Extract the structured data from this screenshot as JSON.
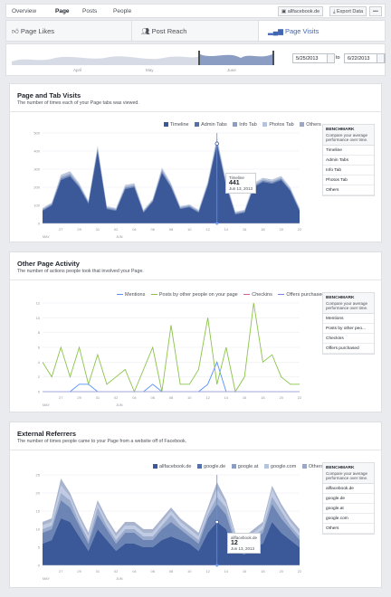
{
  "nav": {
    "items": [
      "Overview",
      "Page",
      "Posts",
      "People"
    ],
    "page_button": "allfacebook.de",
    "export_button": "Export Data",
    "more": "•••"
  },
  "tabs": [
    "Page Likes",
    "Post Reach",
    "Page Visits"
  ],
  "range": {
    "from": "5/25/2013",
    "to_label": "to",
    "to": "6/22/2013",
    "months": [
      "April",
      "May",
      "June"
    ]
  },
  "x_ticks": [
    "27",
    "29",
    "31",
    "02",
    "04",
    "06",
    "08",
    "10",
    "12",
    "14",
    "16",
    "18",
    "20",
    "22"
  ],
  "x_months": {
    "may": "MAY",
    "jun": "JUN"
  },
  "benchmark": {
    "title": "BENCHMARK",
    "desc": "Compare your average performance over time."
  },
  "colors": {
    "timeline": "#3b5998",
    "admin": "#5470a8",
    "info": "#8b9dc3",
    "photos": "#b6c3df",
    "others": "#9aa7c7",
    "mentions": "#5890ff",
    "posts": "#8bc34a",
    "checkins": "#e05c8a",
    "offers": "#7a7de6",
    "ref1": "#3b5998",
    "ref2": "#5470a8",
    "ref3": "#8b9dc3",
    "ref4": "#b6c3df",
    "ref5": "#9aa7c7"
  },
  "panel1": {
    "title": "Page and Tab Visits",
    "subtitle": "The number of times each of your Page tabs was viewed.",
    "benchmark_items": [
      "Timeline",
      "Admin Tabs",
      "Info Tab",
      "Photos Tab",
      "Others"
    ],
    "tooltip": {
      "label": "Timeline",
      "value": "441",
      "date": "Jun 13, 2013"
    }
  },
  "panel2": {
    "title": "Other Page Activity",
    "subtitle": "The number of actions people took that involved your Page.",
    "benchmark_items": [
      "Mentions",
      "Posts by other peo...",
      "Checkins",
      "Offers purchased"
    ]
  },
  "panel3": {
    "title": "External Referrers",
    "subtitle": "The number of times people came to your Page from a website off of Facebook.",
    "benchmark_items": [
      "allfacebook.de",
      "google.de",
      "google.at",
      "google.com",
      "Others"
    ],
    "tooltip": {
      "label": "allfacebook.de",
      "value": "12",
      "date": "Jun 13, 2013"
    }
  },
  "chart_data": [
    {
      "type": "area",
      "title": "Page and Tab Visits",
      "x": [
        "5/25",
        "5/26",
        "5/27",
        "5/28",
        "5/29",
        "5/30",
        "5/31",
        "6/1",
        "6/2",
        "6/3",
        "6/4",
        "6/5",
        "6/6",
        "6/7",
        "6/8",
        "6/9",
        "6/10",
        "6/11",
        "6/12",
        "6/13",
        "6/14",
        "6/15",
        "6/16",
        "6/17",
        "6/18",
        "6/19",
        "6/20",
        "6/21",
        "6/22"
      ],
      "ylim": [
        0,
        500
      ],
      "y_ticks": [
        "0",
        "100",
        "200",
        "300",
        "400",
        "500"
      ],
      "series": [
        {
          "name": "Timeline",
          "values": [
            70,
            100,
            240,
            260,
            200,
            110,
            400,
            80,
            70,
            190,
            200,
            60,
            120,
            280,
            200,
            80,
            90,
            60,
            210,
            441,
            210,
            50,
            60,
            200,
            230,
            220,
            240,
            180,
            70
          ]
        },
        {
          "name": "Admin Tabs",
          "values": [
            5,
            5,
            8,
            8,
            6,
            5,
            10,
            5,
            5,
            6,
            6,
            5,
            5,
            8,
            6,
            5,
            5,
            5,
            6,
            10,
            6,
            5,
            5,
            6,
            6,
            6,
            6,
            5,
            5
          ]
        },
        {
          "name": "Info Tab",
          "values": [
            5,
            5,
            10,
            10,
            8,
            5,
            10,
            5,
            5,
            8,
            8,
            5,
            5,
            10,
            8,
            5,
            5,
            5,
            8,
            12,
            8,
            5,
            5,
            8,
            8,
            8,
            8,
            6,
            5
          ]
        },
        {
          "name": "Photos Tab",
          "values": [
            3,
            3,
            6,
            6,
            5,
            3,
            6,
            3,
            3,
            5,
            5,
            3,
            3,
            6,
            5,
            3,
            3,
            3,
            5,
            8,
            5,
            3,
            3,
            5,
            5,
            5,
            5,
            4,
            3
          ]
        },
        {
          "name": "Others",
          "values": [
            2,
            2,
            4,
            4,
            3,
            2,
            4,
            2,
            2,
            3,
            3,
            2,
            2,
            4,
            3,
            2,
            2,
            2,
            3,
            5,
            3,
            2,
            2,
            3,
            3,
            3,
            3,
            3,
            2
          ]
        }
      ]
    },
    {
      "type": "line",
      "title": "Other Page Activity",
      "x": [
        "5/25",
        "5/26",
        "5/27",
        "5/28",
        "5/29",
        "5/30",
        "5/31",
        "6/1",
        "6/2",
        "6/3",
        "6/4",
        "6/5",
        "6/6",
        "6/7",
        "6/8",
        "6/9",
        "6/10",
        "6/11",
        "6/12",
        "6/13",
        "6/14",
        "6/15",
        "6/16",
        "6/17",
        "6/18",
        "6/19",
        "6/20",
        "6/21",
        "6/22"
      ],
      "ylim": [
        0,
        12
      ],
      "y_ticks": [
        "0",
        "2",
        "4",
        "6",
        "8",
        "10",
        "12"
      ],
      "series": [
        {
          "name": "Mentions",
          "values": [
            0,
            0,
            0,
            0,
            1,
            1,
            0,
            0,
            0,
            0,
            0,
            0,
            1,
            0,
            0,
            0,
            0,
            0,
            1,
            4,
            0,
            0,
            0,
            0,
            0,
            0,
            0,
            0,
            0
          ]
        },
        {
          "name": "Posts by other people on your page",
          "values": [
            4,
            2,
            6,
            2,
            6,
            1,
            5,
            1,
            2,
            3,
            0,
            3,
            6,
            0,
            9,
            1,
            1,
            3,
            10,
            1,
            6,
            0,
            2,
            12,
            4,
            5,
            2,
            1,
            1
          ]
        },
        {
          "name": "Checkins",
          "values": [
            0,
            0,
            0,
            0,
            0,
            0,
            0,
            0,
            0,
            0,
            0,
            0,
            0,
            0,
            0,
            0,
            0,
            0,
            0,
            0,
            0,
            0,
            0,
            0,
            0,
            0,
            0,
            0,
            0
          ]
        },
        {
          "name": "Offers purchased",
          "values": [
            0,
            0,
            0,
            0,
            0,
            0,
            0,
            0,
            0,
            0,
            0,
            0,
            0,
            0,
            0,
            0,
            0,
            0,
            0,
            0,
            0,
            0,
            0,
            0,
            0,
            0,
            0,
            0,
            0
          ]
        }
      ]
    },
    {
      "type": "area",
      "title": "External Referrers",
      "x": [
        "5/25",
        "5/26",
        "5/27",
        "5/28",
        "5/29",
        "5/30",
        "5/31",
        "6/1",
        "6/2",
        "6/3",
        "6/4",
        "6/5",
        "6/6",
        "6/7",
        "6/8",
        "6/9",
        "6/10",
        "6/11",
        "6/12",
        "6/13",
        "6/14",
        "6/15",
        "6/16",
        "6/17",
        "6/18",
        "6/19",
        "6/20",
        "6/21",
        "6/22"
      ],
      "ylim": [
        0,
        25
      ],
      "y_ticks": [
        "0",
        "5",
        "10",
        "15",
        "20",
        "25"
      ],
      "series": [
        {
          "name": "allfacebook.de",
          "values": [
            6,
            7,
            13,
            12,
            8,
            4,
            10,
            7,
            4,
            6,
            6,
            5,
            5,
            7,
            8,
            7,
            6,
            4,
            9,
            12,
            10,
            4,
            3,
            5,
            6,
            12,
            9,
            7,
            5
          ]
        },
        {
          "name": "google.de",
          "values": [
            3,
            3,
            5,
            4,
            3,
            2,
            4,
            3,
            2,
            3,
            3,
            2,
            2,
            3,
            4,
            3,
            2,
            2,
            4,
            5,
            4,
            2,
            2,
            2,
            3,
            5,
            4,
            3,
            2
          ]
        },
        {
          "name": "google.at",
          "values": [
            1,
            1,
            2,
            2,
            1,
            1,
            2,
            1,
            1,
            1,
            1,
            1,
            1,
            1,
            2,
            1,
            1,
            1,
            1,
            2,
            2,
            1,
            1,
            1,
            1,
            2,
            2,
            1,
            1
          ]
        },
        {
          "name": "google.com",
          "values": [
            1,
            1,
            2,
            1,
            1,
            1,
            1,
            1,
            1,
            1,
            1,
            1,
            1,
            1,
            1,
            1,
            1,
            1,
            1,
            2,
            1,
            1,
            1,
            1,
            1,
            2,
            1,
            1,
            1
          ]
        },
        {
          "name": "Others",
          "values": [
            1,
            1,
            2,
            1,
            1,
            1,
            1,
            1,
            1,
            1,
            1,
            1,
            1,
            1,
            1,
            1,
            1,
            1,
            1,
            2,
            1,
            1,
            1,
            1,
            1,
            1,
            1,
            1,
            1
          ]
        }
      ]
    }
  ]
}
